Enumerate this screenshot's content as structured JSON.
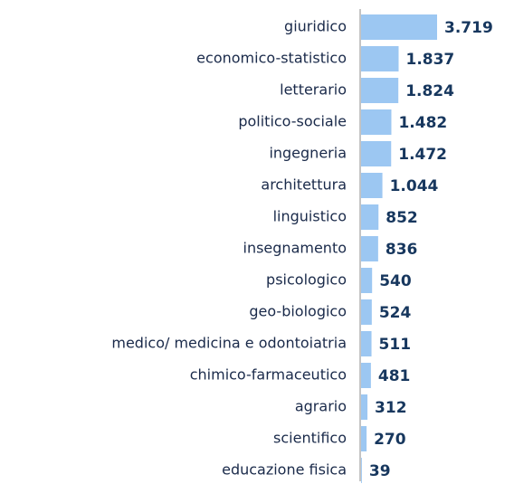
{
  "chart_data": {
    "type": "bar",
    "orientation": "horizontal",
    "categories": [
      "giuridico",
      "economico-statistico",
      "letterario",
      "politico-sociale",
      "ingegneria",
      "architettura",
      "linguistico",
      "insegnamento",
      "psicologico",
      "geo-biologico",
      "medico/ medicina e odontoiatria",
      "chimico-farmaceutico",
      "agrario",
      "scientifico",
      "educazione fisica"
    ],
    "values": [
      3719,
      1837,
      1824,
      1482,
      1472,
      1044,
      852,
      836,
      540,
      524,
      511,
      481,
      312,
      270,
      39
    ],
    "value_labels": [
      "3.719",
      "1.837",
      "1.824",
      "1.482",
      "1.472",
      "1.044",
      "852",
      "836",
      "540",
      "524",
      "511",
      "481",
      "312",
      "270",
      "39"
    ],
    "color": "#9cc7f2"
  }
}
